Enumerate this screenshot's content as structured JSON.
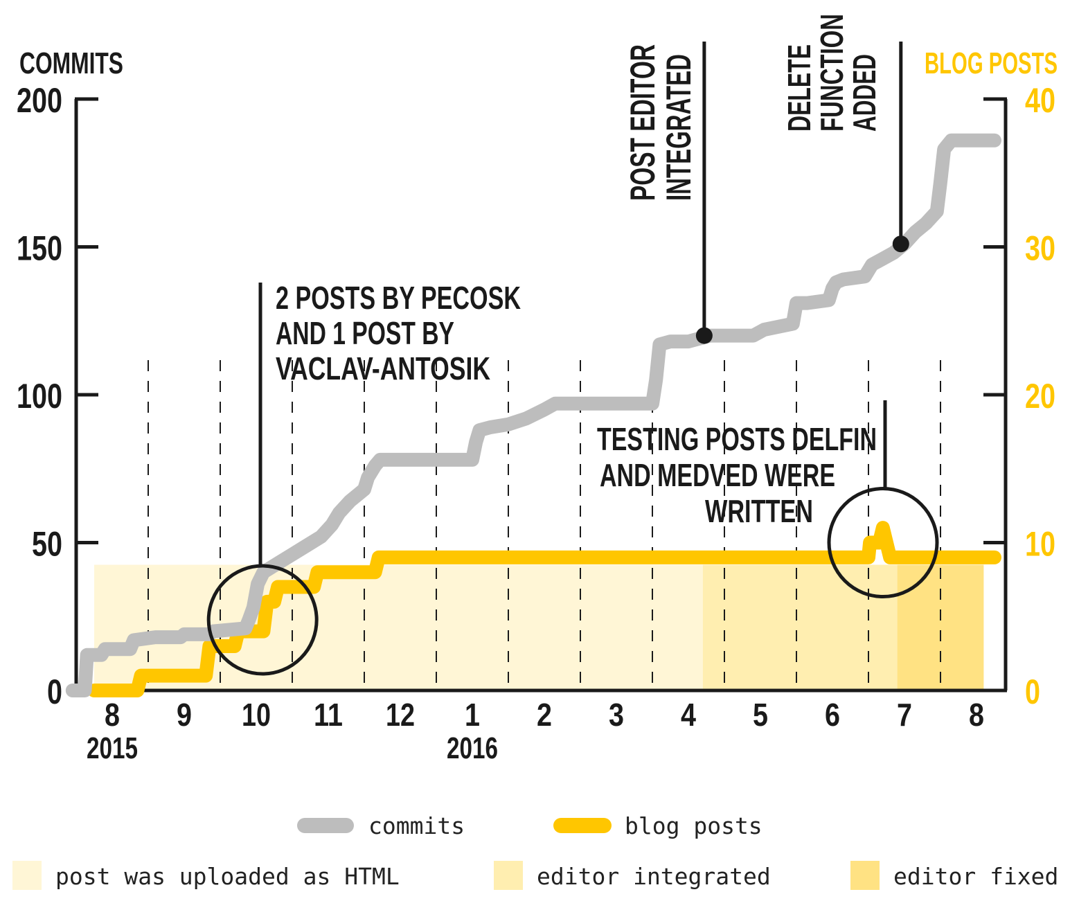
{
  "chart_data": {
    "type": "line",
    "left_axis": {
      "title": "COMMITS",
      "ylim": [
        0,
        200
      ],
      "ticks": [
        0,
        50,
        100,
        150,
        200
      ]
    },
    "right_axis": {
      "title": "BLOG POSTS",
      "ylim": [
        0,
        40
      ],
      "ticks": [
        0,
        10,
        20,
        30,
        40
      ]
    },
    "x_ticks": [
      {
        "label": "8",
        "year": "2015",
        "t": 0
      },
      {
        "label": "9",
        "t": 1
      },
      {
        "label": "10",
        "t": 2
      },
      {
        "label": "11",
        "t": 3
      },
      {
        "label": "12",
        "t": 4
      },
      {
        "label": "1",
        "year": "2016",
        "t": 5
      },
      {
        "label": "2",
        "t": 6
      },
      {
        "label": "3",
        "t": 7
      },
      {
        "label": "4",
        "t": 8
      },
      {
        "label": "5",
        "t": 9
      },
      {
        "label": "6",
        "t": 10
      },
      {
        "label": "7",
        "t": 11
      },
      {
        "label": "8",
        "t": 12
      }
    ],
    "series": [
      {
        "name": "commits",
        "axis": "left",
        "color": "#bdbdbd",
        "points": [
          [
            -0.55,
            0
          ],
          [
            -0.38,
            0
          ],
          [
            -0.35,
            12
          ],
          [
            -0.15,
            12
          ],
          [
            -0.1,
            14
          ],
          [
            0.25,
            14
          ],
          [
            0.3,
            17
          ],
          [
            0.6,
            18
          ],
          [
            0.95,
            18
          ],
          [
            1.0,
            19
          ],
          [
            1.35,
            19
          ],
          [
            1.4,
            20
          ],
          [
            1.85,
            21
          ],
          [
            1.9,
            24
          ],
          [
            1.96,
            28
          ],
          [
            2.02,
            36
          ],
          [
            2.1,
            40
          ],
          [
            2.3,
            43
          ],
          [
            2.5,
            46
          ],
          [
            2.7,
            49
          ],
          [
            2.9,
            52
          ],
          [
            3.05,
            56
          ],
          [
            3.15,
            60
          ],
          [
            3.3,
            64
          ],
          [
            3.5,
            68
          ],
          [
            3.55,
            72
          ],
          [
            3.65,
            76
          ],
          [
            3.72,
            78
          ],
          [
            4.0,
            78
          ],
          [
            4.5,
            78
          ],
          [
            5.0,
            78
          ],
          [
            5.05,
            84
          ],
          [
            5.1,
            88
          ],
          [
            5.25,
            89
          ],
          [
            5.5,
            90
          ],
          [
            5.75,
            92
          ],
          [
            6.0,
            95
          ],
          [
            6.15,
            97
          ],
          [
            6.5,
            97
          ],
          [
            7.0,
            97
          ],
          [
            7.5,
            97
          ],
          [
            7.55,
            105
          ],
          [
            7.6,
            117
          ],
          [
            7.75,
            118
          ],
          [
            8.0,
            118
          ],
          [
            8.3,
            120
          ],
          [
            8.9,
            120
          ],
          [
            9.05,
            122
          ],
          [
            9.45,
            124
          ],
          [
            9.5,
            131
          ],
          [
            9.65,
            131
          ],
          [
            9.95,
            132
          ],
          [
            10.0,
            136
          ],
          [
            10.05,
            138
          ],
          [
            10.15,
            139
          ],
          [
            10.45,
            140
          ],
          [
            10.55,
            144
          ],
          [
            10.7,
            146
          ],
          [
            10.85,
            148
          ],
          [
            11.0,
            151
          ],
          [
            11.15,
            155
          ],
          [
            11.3,
            158
          ],
          [
            11.45,
            162
          ],
          [
            11.5,
            172
          ],
          [
            11.55,
            183
          ],
          [
            11.65,
            186
          ],
          [
            11.8,
            186
          ],
          [
            12.25,
            186
          ]
        ]
      },
      {
        "name": "blog posts",
        "axis": "right",
        "color": "#ffc600",
        "points": [
          [
            -0.25,
            0
          ],
          [
            0.35,
            0
          ],
          [
            0.4,
            1
          ],
          [
            1.3,
            1
          ],
          [
            1.35,
            3
          ],
          [
            1.7,
            3
          ],
          [
            1.75,
            4
          ],
          [
            2.1,
            4
          ],
          [
            2.15,
            6
          ],
          [
            2.25,
            6
          ],
          [
            2.3,
            7
          ],
          [
            2.8,
            7
          ],
          [
            2.85,
            8
          ],
          [
            3.65,
            8
          ],
          [
            3.7,
            9
          ],
          [
            10.2,
            9
          ],
          [
            10.5,
            9
          ],
          [
            10.52,
            10
          ],
          [
            10.65,
            10
          ],
          [
            10.7,
            11
          ],
          [
            10.75,
            10
          ],
          [
            10.8,
            9
          ],
          [
            12.25,
            9
          ]
        ]
      }
    ],
    "shaded_regions": [
      {
        "label": "post was uploaded as HTML",
        "from": -0.25,
        "to": 8.2,
        "value": 8.5,
        "color": "#fff6d6"
      },
      {
        "label": "editor integrated",
        "from": 8.2,
        "to": 10.9,
        "value": 8.5,
        "color": "#ffeeb0"
      },
      {
        "label": "editor fixed",
        "from": 10.9,
        "to": 12.1,
        "value": 8.5,
        "color": "#ffe283"
      }
    ],
    "annotations": [
      {
        "text": [
          "POST EDITOR",
          "INTEGRATED"
        ],
        "t": 8.22,
        "value": 120,
        "orientation": "vertical"
      },
      {
        "text": [
          "DELETE",
          "FUNCTION",
          "ADDED"
        ],
        "t": 10.95,
        "value": 151,
        "orientation": "vertical"
      },
      {
        "text": [
          "2 POSTS BY PECOSK",
          "AND 1 POST BY",
          "VACLAV-ANTOSIK"
        ],
        "t": 2.05,
        "value": 22
      },
      {
        "text": [
          "TESTING POSTS DELFIN",
          "AND MEDVED WERE",
          "WRITTEN"
        ],
        "t": 10.75,
        "value": 50
      }
    ],
    "grid": "dashed month separators",
    "legend": {
      "lines": [
        {
          "label": "commits",
          "color": "#bdbdbd"
        },
        {
          "label": "blog posts",
          "color": "#ffc600"
        }
      ],
      "areas": [
        {
          "label": "post was uploaded as HTML",
          "color": "#fff6d6"
        },
        {
          "label": "editor integrated",
          "color": "#ffeeb0"
        },
        {
          "label": "editor fixed",
          "color": "#ffe283"
        }
      ],
      "position": "bottom"
    }
  }
}
